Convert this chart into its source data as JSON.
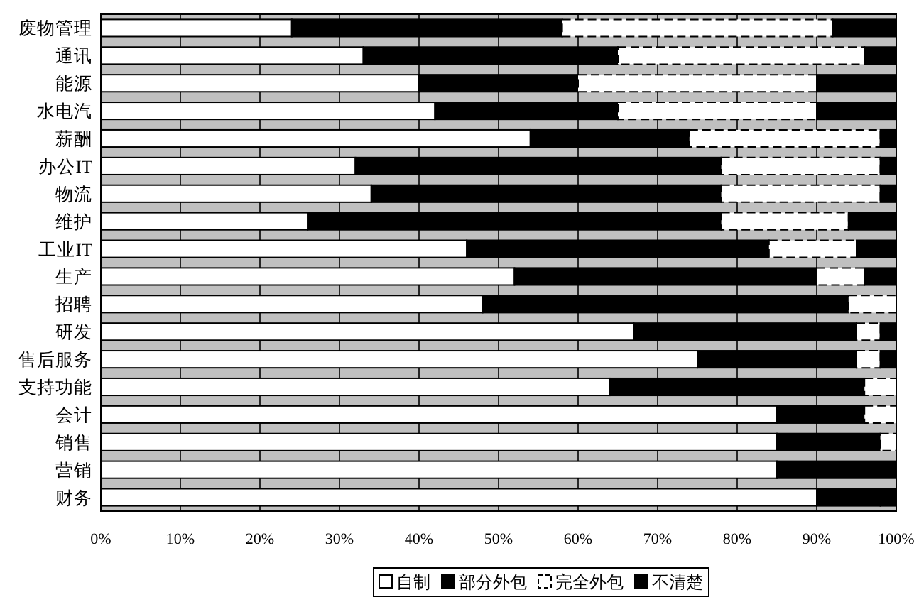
{
  "chart_data": {
    "type": "bar",
    "orientation": "horizontal",
    "stacked": true,
    "categories": [
      "废物管理",
      "通讯",
      "能源",
      "水电汽",
      "薪酬",
      "办公IT",
      "物流",
      "维护",
      "工业IT",
      "生产",
      "招聘",
      "研发",
      "售后服务",
      "支持功能",
      "会计",
      "销售",
      "营销",
      "财务"
    ],
    "series": [
      {
        "name": "自制",
        "color": "#ffffff",
        "values": [
          24,
          33,
          40,
          42,
          54,
          32,
          34,
          26,
          46,
          52,
          48,
          67,
          75,
          64,
          85,
          85,
          85,
          90
        ]
      },
      {
        "name": "部分外包",
        "color": "#000000",
        "values": [
          34,
          32,
          20,
          23,
          20,
          46,
          44,
          52,
          38,
          38,
          46,
          28,
          20,
          32,
          11,
          13,
          15,
          8
        ]
      },
      {
        "name": "完全外包",
        "color": "#ffffff",
        "line_style": "dashed",
        "values": [
          34,
          31,
          30,
          25,
          24,
          20,
          20,
          16,
          11,
          6,
          6,
          3,
          3,
          4,
          4,
          2,
          0,
          0
        ]
      },
      {
        "name": "不清楚",
        "color": "#000000",
        "values": [
          8,
          4,
          10,
          10,
          2,
          2,
          2,
          6,
          5,
          4,
          0,
          2,
          2,
          0,
          0,
          0,
          0,
          2
        ]
      }
    ],
    "xlim": [
      0,
      100
    ],
    "xticks": [
      {
        "value": 0,
        "label": "0%"
      },
      {
        "value": 10,
        "label": "10%"
      },
      {
        "value": 20,
        "label": "20%"
      },
      {
        "value": 30,
        "label": "30%"
      },
      {
        "value": 40,
        "label": "40%"
      },
      {
        "value": 50,
        "label": "50%"
      },
      {
        "value": 60,
        "label": "60%"
      },
      {
        "value": 70,
        "label": "70%"
      },
      {
        "value": 80,
        "label": "80%"
      },
      {
        "value": 90,
        "label": "90%"
      },
      {
        "value": 100,
        "label": "100%"
      }
    ],
    "grid": "x",
    "legend": "bottom"
  }
}
